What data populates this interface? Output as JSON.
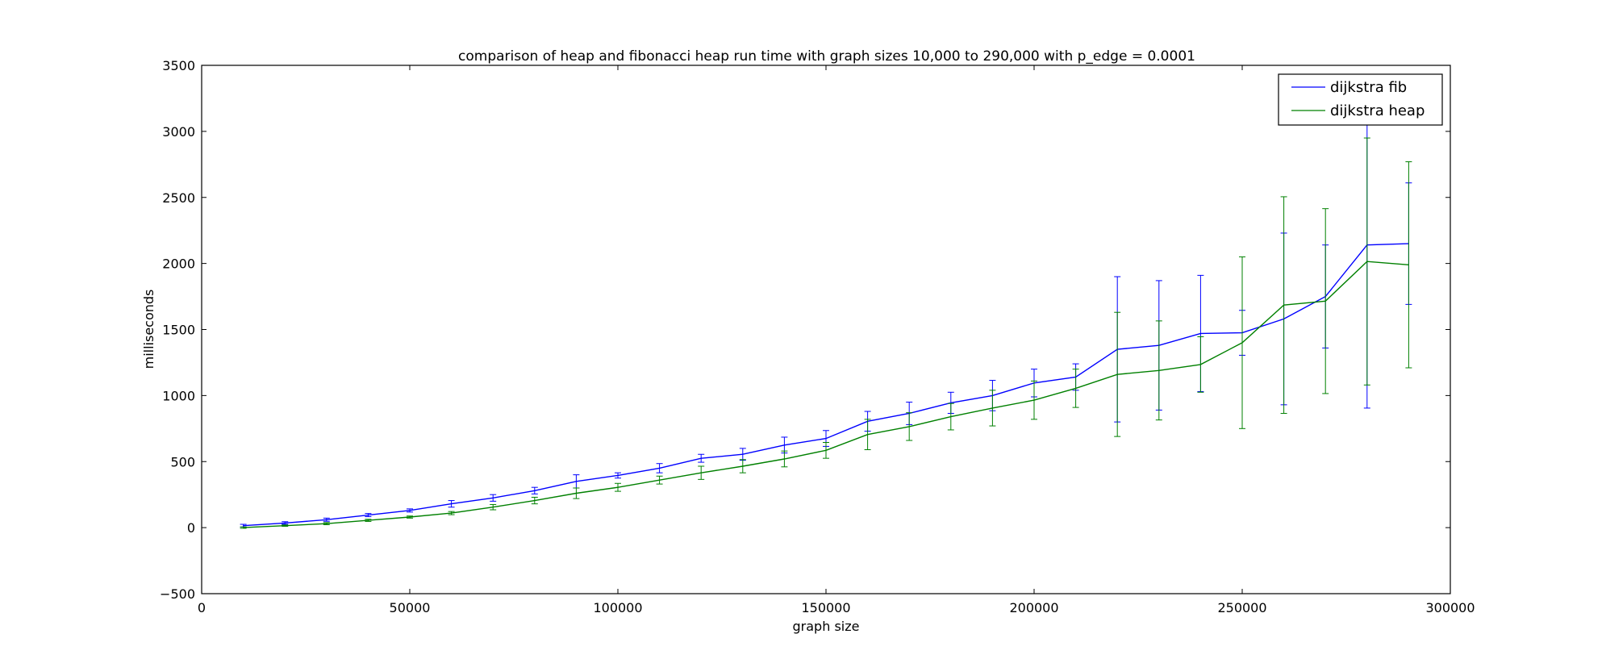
{
  "chart_data": {
    "type": "line",
    "title": "comparison of heap and fibonacci heap run time with graph sizes 10,000 to 290,000 with p_edge = 0.0001",
    "xlabel": "graph size",
    "ylabel": "milliseconds",
    "xlim": [
      0,
      300000
    ],
    "ylim": [
      -500,
      3500
    ],
    "xticks": [
      0,
      50000,
      100000,
      150000,
      200000,
      250000,
      300000
    ],
    "yticks": [
      -500,
      0,
      500,
      1000,
      1500,
      2000,
      2500,
      3000,
      3500
    ],
    "xtick_labels": [
      "0",
      "50000",
      "100000",
      "150000",
      "200000",
      "250000",
      "300000"
    ],
    "ytick_labels": [
      "−500",
      "0",
      "500",
      "1000",
      "1500",
      "2000",
      "2500",
      "3000",
      "3500"
    ],
    "grid": false,
    "legend": "top-right",
    "error_bars": true,
    "x": [
      10000,
      20000,
      30000,
      40000,
      50000,
      60000,
      70000,
      80000,
      90000,
      100000,
      110000,
      120000,
      130000,
      140000,
      150000,
      160000,
      170000,
      180000,
      190000,
      200000,
      210000,
      220000,
      230000,
      240000,
      250000,
      260000,
      270000,
      280000,
      290000
    ],
    "series": [
      {
        "name": "dijkstra fib",
        "color": "#0000ff",
        "values": [
          15,
          35,
          60,
          95,
          130,
          180,
          225,
          280,
          350,
          395,
          450,
          525,
          555,
          625,
          675,
          805,
          865,
          945,
          1000,
          1095,
          1140,
          1350,
          1380,
          1470,
          1475,
          1580,
          1750,
          2140,
          2150
        ],
        "errors": [
          10,
          10,
          12,
          12,
          12,
          25,
          25,
          25,
          50,
          20,
          35,
          30,
          45,
          60,
          60,
          75,
          85,
          80,
          115,
          105,
          100,
          550,
          490,
          440,
          170,
          650,
          390,
          1235,
          460
        ]
      },
      {
        "name": "dijkstra heap",
        "color": "#008000",
        "values": [
          0,
          15,
          30,
          55,
          80,
          110,
          155,
          205,
          260,
          305,
          360,
          415,
          465,
          520,
          585,
          705,
          765,
          840,
          905,
          965,
          1055,
          1160,
          1190,
          1235,
          1400,
          1685,
          1715,
          2015,
          1990
        ],
        "errors": [
          5,
          5,
          8,
          8,
          8,
          12,
          20,
          25,
          40,
          30,
          30,
          50,
          50,
          60,
          60,
          115,
          105,
          100,
          135,
          145,
          145,
          470,
          375,
          210,
          650,
          820,
          700,
          935,
          780
        ]
      }
    ]
  }
}
